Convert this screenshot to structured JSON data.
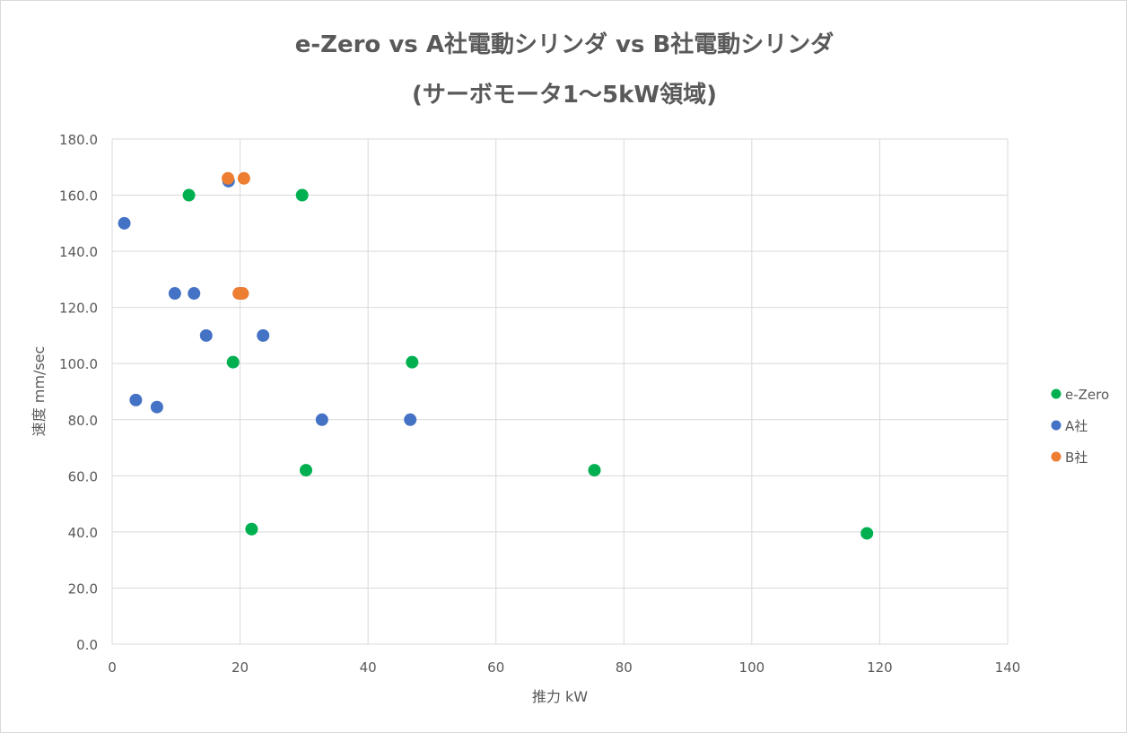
{
  "chart_data": {
    "type": "scatter",
    "title_lines": [
      "e-Zero vs A社電動シリンダ vs B社電動シリンダ",
      "(サーボモータ1～5kW領域)"
    ],
    "xlabel": "推力 kW",
    "ylabel": "速度 mm/sec",
    "xlim": [
      0,
      140
    ],
    "ylim": [
      0,
      180
    ],
    "x_ticks": [
      0,
      20,
      40,
      60,
      80,
      100,
      120,
      140
    ],
    "y_ticks": [
      0,
      20,
      40,
      60,
      80,
      100,
      120,
      140,
      160,
      180
    ],
    "y_tick_labels": [
      "0.0",
      "20.0",
      "40.0",
      "60.0",
      "80.0",
      "100.0",
      "120.0",
      "140.0",
      "160.0",
      "180.0"
    ],
    "grid": true,
    "legend_position": "right",
    "series": [
      {
        "name": "e-Zero",
        "color": "#00b050",
        "points": [
          [
            12,
            160
          ],
          [
            29.7,
            160
          ],
          [
            18.9,
            100.5
          ],
          [
            46.9,
            100.5
          ],
          [
            30.3,
            62
          ],
          [
            75.4,
            62
          ],
          [
            21.8,
            41
          ],
          [
            118,
            39.5
          ]
        ]
      },
      {
        "name": "A社",
        "color": "#4472c4",
        "points": [
          [
            1.9,
            150
          ],
          [
            9.8,
            125
          ],
          [
            12.8,
            125
          ],
          [
            20.2,
            125
          ],
          [
            14.7,
            110
          ],
          [
            23.6,
            110
          ],
          [
            3.7,
            87
          ],
          [
            7,
            84.5
          ],
          [
            32.8,
            80
          ],
          [
            46.6,
            80
          ],
          [
            18.2,
            165
          ]
        ]
      },
      {
        "name": "B社",
        "color": "#ed7d31",
        "points": [
          [
            18.1,
            166
          ],
          [
            20.6,
            166
          ],
          [
            19.8,
            125
          ],
          [
            20.4,
            125
          ]
        ]
      }
    ]
  }
}
